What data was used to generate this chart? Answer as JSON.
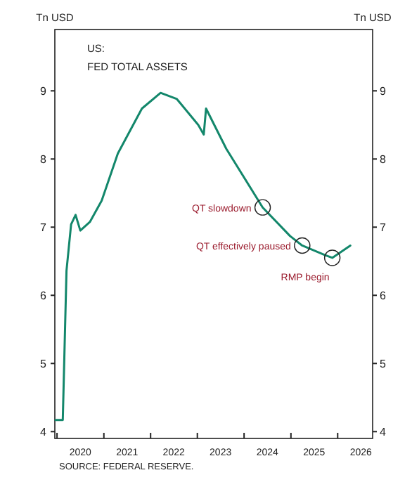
{
  "chart_data": {
    "type": "line",
    "title": "US:",
    "subtitle": "FED TOTAL ASSETS",
    "ylabel": "Tn USD",
    "y2label": "Tn USD",
    "x": [
      "2019-12-20",
      "2020-02-15",
      "2020-03-15",
      "2020-04-20",
      "2020-05-25",
      "2020-07-01",
      "2020-09-15",
      "2020-12-15",
      "2021-04-20",
      "2021-10-25",
      "2022-03-20",
      "2022-07-25",
      "2023-01-08",
      "2023-02-20",
      "2023-03-10",
      "2023-08-15",
      "2024-05-25",
      "2024-12-25",
      "2025-03-30",
      "2025-09-25",
      "2025-11-20",
      "2026-04-10"
    ],
    "series": [
      {
        "color": "#13876b",
        "values": [
          4.17,
          4.17,
          6.36,
          7.04,
          7.18,
          6.95,
          7.08,
          7.39,
          8.08,
          8.74,
          8.97,
          8.88,
          8.5,
          8.36,
          8.74,
          8.15,
          7.29,
          6.87,
          6.73,
          6.59,
          6.55,
          6.73
        ]
      }
    ],
    "xlim": [
      "2019-12-15",
      "2026-10-01"
    ],
    "xticks": [
      {
        "value": "2020-01-01",
        "label": null
      },
      {
        "value": "2020-07-01",
        "label": "2020"
      },
      {
        "value": "2021-01-01",
        "label": null
      },
      {
        "value": "2021-07-01",
        "label": "2021"
      },
      {
        "value": "2022-01-01",
        "label": null
      },
      {
        "value": "2022-07-01",
        "label": "2022"
      },
      {
        "value": "2023-01-01",
        "label": null
      },
      {
        "value": "2023-07-01",
        "label": "2023"
      },
      {
        "value": "2024-01-01",
        "label": null
      },
      {
        "value": "2024-07-01",
        "label": "2024"
      },
      {
        "value": "2025-01-01",
        "label": null
      },
      {
        "value": "2025-07-01",
        "label": "2025"
      },
      {
        "value": "2026-01-01",
        "label": null
      },
      {
        "value": "2026-07-01",
        "label": "2026"
      }
    ],
    "ylim": [
      3.9,
      9.9
    ],
    "yticks": [
      4,
      5,
      6,
      7,
      8,
      9
    ],
    "y2lim": [
      3.9,
      9.9
    ],
    "y2ticks": [
      4,
      5,
      6,
      7,
      8,
      9
    ],
    "annotations": [
      {
        "text": "QT slowdown",
        "x": "2024-05-25",
        "y": 7.29
      },
      {
        "text": "QT effectively paused",
        "x": "2025-03-30",
        "y": 6.73
      },
      {
        "text": "RMP begin",
        "x": "2025-11-20",
        "y": 6.55
      },
      "SOURCE: FEDERAL RESERVE."
    ],
    "grid": false,
    "marker": "none",
    "line_style": "solid"
  }
}
